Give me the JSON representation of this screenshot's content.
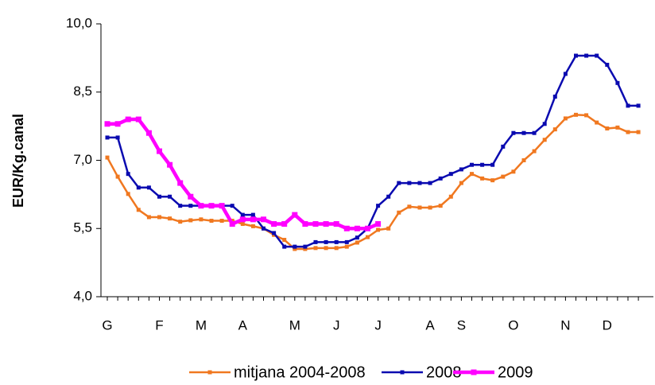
{
  "chart_data": {
    "type": "line",
    "y_label": "EUR/Kg.canal",
    "categories": [
      "G",
      null,
      null,
      null,
      null,
      "F",
      null,
      null,
      null,
      "M",
      null,
      null,
      null,
      "A",
      null,
      null,
      null,
      null,
      "M",
      null,
      null,
      null,
      "J",
      null,
      null,
      null,
      "J",
      null,
      null,
      null,
      null,
      "A",
      null,
      null,
      "S",
      null,
      null,
      null,
      null,
      "O",
      null,
      null,
      null,
      null,
      "N",
      null,
      null,
      null,
      "D",
      null,
      null,
      null
    ],
    "ylim": [
      4,
      10
    ],
    "yticks": [
      {
        "value": 4,
        "label": "4,0"
      },
      {
        "value": 5.5,
        "label": "5,5"
      },
      {
        "value": 7,
        "label": "7,0"
      },
      {
        "value": 8.5,
        "label": "8,5"
      },
      {
        "value": 10,
        "label": "10,0"
      }
    ],
    "series": [
      {
        "name": "mitjana 2004-2008",
        "color": "#f07820",
        "values": [
          7.06,
          6.64,
          6.26,
          5.91,
          5.75,
          5.75,
          5.72,
          5.65,
          5.68,
          5.7,
          5.67,
          5.67,
          5.67,
          5.6,
          5.55,
          5.5,
          5.36,
          5.25,
          5.05,
          5.05,
          5.07,
          5.07,
          5.07,
          5.1,
          5.19,
          5.31,
          5.47,
          5.5,
          5.85,
          5.98,
          5.96,
          5.96,
          6.0,
          6.2,
          6.5,
          6.7,
          6.6,
          6.56,
          6.64,
          6.75,
          7.0,
          7.2,
          7.45,
          7.68,
          7.92,
          8.0,
          7.99,
          7.83,
          7.7,
          7.72,
          7.62,
          7.62
        ]
      },
      {
        "name": "2008",
        "color": "#0a0ab0",
        "values": [
          7.5,
          7.5,
          6.7,
          6.4,
          6.4,
          6.2,
          6.2,
          6.0,
          6.0,
          6.0,
          6.0,
          6.0,
          6.0,
          5.8,
          5.8,
          5.5,
          5.4,
          5.1,
          5.1,
          5.1,
          5.2,
          5.2,
          5.2,
          5.2,
          5.3,
          5.5,
          6.0,
          6.2,
          6.5,
          6.5,
          6.5,
          6.5,
          6.6,
          6.7,
          6.8,
          6.9,
          6.9,
          6.9,
          7.3,
          7.6,
          7.6,
          7.6,
          7.8,
          8.4,
          8.9,
          9.3,
          9.3,
          9.3,
          9.1,
          8.7,
          8.2,
          8.2
        ]
      },
      {
        "name": "2009",
        "color": "#ff00ff",
        "values": [
          7.8,
          7.8,
          7.9,
          7.9,
          7.6,
          7.2,
          6.9,
          6.5,
          6.2,
          6.0,
          6.0,
          6.0,
          5.6,
          5.7,
          5.7,
          5.7,
          5.6,
          5.6,
          5.8,
          5.6,
          5.6,
          5.6,
          5.6,
          5.5,
          5.5,
          5.5,
          5.6,
          null,
          null,
          null,
          null,
          null,
          null,
          null,
          null,
          null,
          null,
          null,
          null,
          null,
          null,
          null,
          null,
          null,
          null,
          null,
          null,
          null,
          null,
          null,
          null,
          null
        ]
      }
    ]
  }
}
